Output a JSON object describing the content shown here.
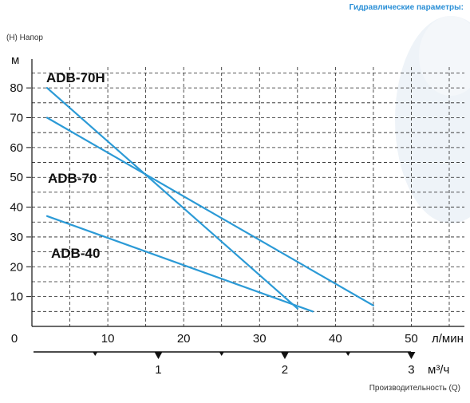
{
  "header": {
    "title": "Гидравлические параметры:"
  },
  "colors": {
    "series": "#2b9ad6",
    "grid": "#222222",
    "accent": "#2a8fd6"
  },
  "chart_data": {
    "type": "line",
    "title": "",
    "ylabel": "(H) Напор",
    "yunit": "м",
    "xlabel": "Производительность (Q)",
    "xunit": "л/мин",
    "x2unit": "м³/ч",
    "xlim": [
      0,
      57
    ],
    "ylim": [
      0,
      87
    ],
    "xticks": [
      0,
      10,
      20,
      30,
      40,
      50
    ],
    "yticks": [
      10,
      20,
      30,
      40,
      50,
      60,
      70,
      80
    ],
    "x2ticks": [
      1,
      2,
      3
    ],
    "grid": true,
    "series": [
      {
        "name": "ADB-70H",
        "x": [
          2,
          35
        ],
        "y": [
          80,
          6
        ]
      },
      {
        "name": "ADB-70",
        "x": [
          2,
          45
        ],
        "y": [
          70,
          7
        ]
      },
      {
        "name": "ADB-40",
        "x": [
          2,
          37
        ],
        "y": [
          37,
          5
        ]
      }
    ]
  }
}
